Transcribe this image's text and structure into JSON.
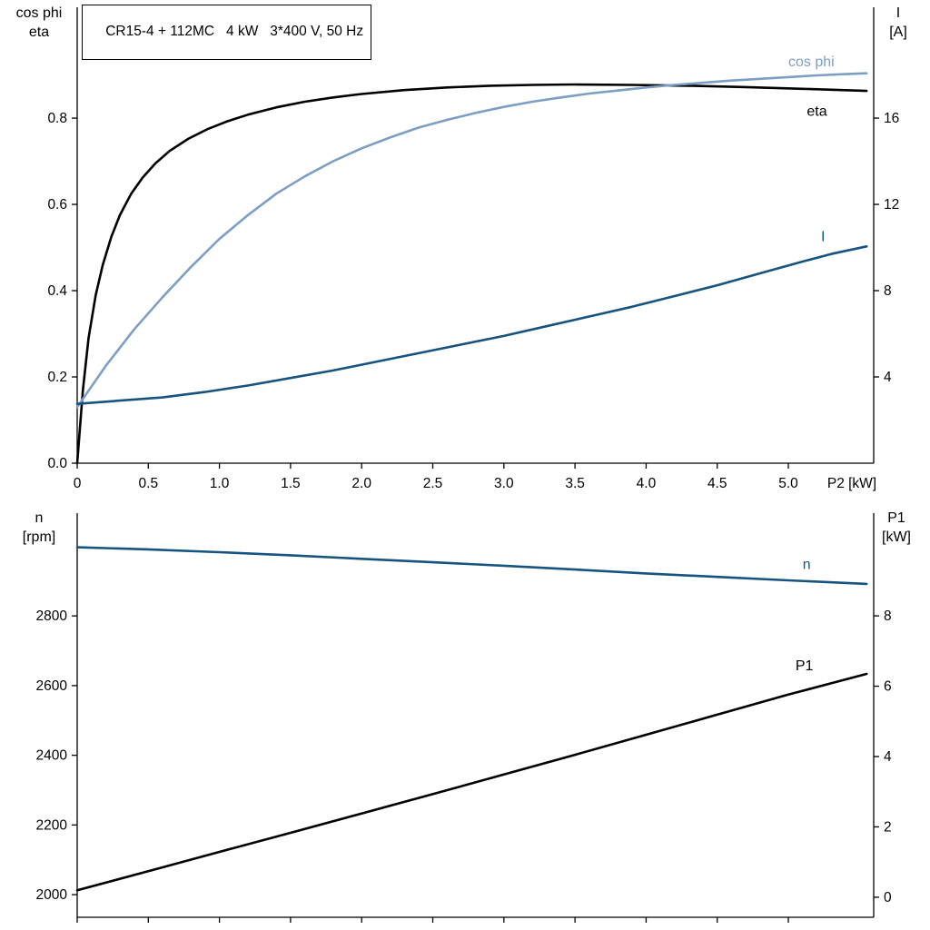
{
  "title_box": {
    "text": "CR15-4 + 112MC   4 kW   3*400 V, 50 Hz"
  },
  "chart_data": [
    {
      "type": "line",
      "title": "CR15-4 + 112MC   4 kW   3*400 V, 50 Hz",
      "xlabel": "P2 [kW]",
      "x_range": [
        0,
        5.6
      ],
      "grid": false,
      "x_ticks": [
        {
          "v": 0,
          "label": "0"
        },
        {
          "v": 0.5,
          "label": "0.5"
        },
        {
          "v": 1.0,
          "label": "1.0"
        },
        {
          "v": 1.5,
          "label": "1.5"
        },
        {
          "v": 2.0,
          "label": "2.0"
        },
        {
          "v": 2.5,
          "label": "2.5"
        },
        {
          "v": 3.0,
          "label": "3.0"
        },
        {
          "v": 3.5,
          "label": "3.5"
        },
        {
          "v": 4.0,
          "label": "4.0"
        },
        {
          "v": 4.5,
          "label": "4.5"
        },
        {
          "v": 5.0,
          "label": "5.0"
        }
      ],
      "left_axis": {
        "title_lines": [
          "cos phi",
          "eta"
        ],
        "range": [
          0,
          1.057
        ],
        "ticks": [
          {
            "v": 0.0,
            "label": "0.0"
          },
          {
            "v": 0.2,
            "label": "0.2"
          },
          {
            "v": 0.4,
            "label": "0.4"
          },
          {
            "v": 0.6,
            "label": "0.6"
          },
          {
            "v": 0.8,
            "label": "0.8"
          }
        ]
      },
      "right_axis": {
        "title_lines": [
          "I",
          "[A]"
        ],
        "range": [
          0,
          21.14
        ],
        "ticks": [
          {
            "v": 4,
            "label": "4"
          },
          {
            "v": 8,
            "label": "8"
          },
          {
            "v": 12,
            "label": "12"
          },
          {
            "v": 16,
            "label": "16"
          }
        ]
      },
      "series": [
        {
          "name": "eta",
          "axis": "left",
          "color": "#000000",
          "stroke_width": 2.6,
          "label": {
            "text": "eta",
            "x": 5.13,
            "y": 0.805
          },
          "points": [
            [
              0,
              0
            ],
            [
              0.04,
              0.17
            ],
            [
              0.08,
              0.29
            ],
            [
              0.13,
              0.39
            ],
            [
              0.18,
              0.46
            ],
            [
              0.24,
              0.525
            ],
            [
              0.3,
              0.575
            ],
            [
              0.38,
              0.625
            ],
            [
              0.46,
              0.662
            ],
            [
              0.55,
              0.695
            ],
            [
              0.65,
              0.724
            ],
            [
              0.78,
              0.752
            ],
            [
              0.92,
              0.775
            ],
            [
              1.05,
              0.792
            ],
            [
              1.2,
              0.808
            ],
            [
              1.4,
              0.825
            ],
            [
              1.6,
              0.838
            ],
            [
              1.8,
              0.848
            ],
            [
              2.0,
              0.856
            ],
            [
              2.3,
              0.865
            ],
            [
              2.6,
              0.871
            ],
            [
              2.9,
              0.875
            ],
            [
              3.2,
              0.877
            ],
            [
              3.5,
              0.878
            ],
            [
              3.9,
              0.877
            ],
            [
              4.3,
              0.875
            ],
            [
              4.7,
              0.872
            ],
            [
              5.1,
              0.868
            ],
            [
              5.55,
              0.863
            ]
          ]
        },
        {
          "name": "cos phi",
          "axis": "left",
          "color": "#7d9ec3",
          "stroke_width": 2.6,
          "label": {
            "text": "cos phi",
            "x": 5.0,
            "y": 0.92
          },
          "points": [
            [
              0,
              0.13
            ],
            [
              0.2,
              0.225
            ],
            [
              0.4,
              0.31
            ],
            [
              0.6,
              0.385
            ],
            [
              0.8,
              0.455
            ],
            [
              1.0,
              0.52
            ],
            [
              1.2,
              0.575
            ],
            [
              1.4,
              0.625
            ],
            [
              1.6,
              0.665
            ],
            [
              1.8,
              0.7
            ],
            [
              2.0,
              0.73
            ],
            [
              2.2,
              0.755
            ],
            [
              2.4,
              0.778
            ],
            [
              2.6,
              0.796
            ],
            [
              2.8,
              0.812
            ],
            [
              3.0,
              0.826
            ],
            [
              3.2,
              0.838
            ],
            [
              3.4,
              0.848
            ],
            [
              3.6,
              0.857
            ],
            [
              3.8,
              0.864
            ],
            [
              4.0,
              0.871
            ],
            [
              4.2,
              0.877
            ],
            [
              4.4,
              0.882
            ],
            [
              4.6,
              0.887
            ],
            [
              4.8,
              0.891
            ],
            [
              5.0,
              0.895
            ],
            [
              5.2,
              0.899
            ],
            [
              5.4,
              0.902
            ],
            [
              5.55,
              0.904
            ]
          ]
        },
        {
          "name": "I",
          "axis": "right",
          "color": "#17537f",
          "stroke_width": 2.6,
          "label": {
            "text": "I",
            "x": 5.23,
            "y": 10.3
          },
          "points": [
            [
              0,
              2.75
            ],
            [
              0.3,
              2.9
            ],
            [
              0.6,
              3.05
            ],
            [
              0.9,
              3.3
            ],
            [
              1.2,
              3.6
            ],
            [
              1.5,
              3.95
            ],
            [
              1.8,
              4.3
            ],
            [
              2.1,
              4.7
            ],
            [
              2.4,
              5.1
            ],
            [
              2.7,
              5.5
            ],
            [
              3.0,
              5.9
            ],
            [
              3.3,
              6.35
            ],
            [
              3.6,
              6.8
            ],
            [
              3.9,
              7.25
            ],
            [
              4.2,
              7.75
            ],
            [
              4.5,
              8.25
            ],
            [
              4.8,
              8.8
            ],
            [
              5.1,
              9.35
            ],
            [
              5.3,
              9.7
            ],
            [
              5.55,
              10.05
            ]
          ]
        }
      ]
    },
    {
      "type": "line",
      "title": "",
      "xlabel": "",
      "x_range": [
        0,
        5.6
      ],
      "grid": false,
      "x_ticks": [
        {
          "v": 0,
          "label": ""
        },
        {
          "v": 0.5,
          "label": ""
        },
        {
          "v": 1.0,
          "label": ""
        },
        {
          "v": 1.5,
          "label": ""
        },
        {
          "v": 2.0,
          "label": ""
        },
        {
          "v": 2.5,
          "label": ""
        },
        {
          "v": 3.0,
          "label": ""
        },
        {
          "v": 3.5,
          "label": ""
        },
        {
          "v": 4.0,
          "label": ""
        },
        {
          "v": 4.5,
          "label": ""
        },
        {
          "v": 5.0,
          "label": ""
        }
      ],
      "left_axis": {
        "title_lines": [
          "n",
          "[rpm]"
        ],
        "range": [
          1935,
          3095
        ],
        "ticks": [
          {
            "v": 2000,
            "label": "2000"
          },
          {
            "v": 2200,
            "label": "2200"
          },
          {
            "v": 2400,
            "label": "2400"
          },
          {
            "v": 2600,
            "label": "2600"
          },
          {
            "v": 2800,
            "label": "2800"
          }
        ]
      },
      "right_axis": {
        "title_lines": [
          "P1",
          "[kW]"
        ],
        "range": [
          -0.57,
          10.92
        ],
        "ticks": [
          {
            "v": 0,
            "label": "0"
          },
          {
            "v": 2,
            "label": "2"
          },
          {
            "v": 4,
            "label": "4"
          },
          {
            "v": 6,
            "label": "6"
          },
          {
            "v": 8,
            "label": "8"
          }
        ]
      },
      "series": [
        {
          "name": "n",
          "axis": "left",
          "color": "#17537f",
          "stroke_width": 2.6,
          "label": {
            "text": "n",
            "x": 5.1,
            "y": 2935
          },
          "points": [
            [
              0,
              2997
            ],
            [
              0.5,
              2991
            ],
            [
              1.0,
              2983
            ],
            [
              1.5,
              2974
            ],
            [
              2.0,
              2964
            ],
            [
              2.5,
              2954
            ],
            [
              3.0,
              2944
            ],
            [
              3.5,
              2933
            ],
            [
              4.0,
              2922
            ],
            [
              4.5,
              2912
            ],
            [
              5.0,
              2902
            ],
            [
              5.55,
              2892
            ]
          ]
        },
        {
          "name": "P1",
          "axis": "right",
          "color": "#000000",
          "stroke_width": 2.6,
          "label": {
            "text": "P1",
            "x": 5.05,
            "y": 6.45
          },
          "points": [
            [
              0,
              0.2
            ],
            [
              0.5,
              0.74
            ],
            [
              1.0,
              1.29
            ],
            [
              1.5,
              1.83
            ],
            [
              2.0,
              2.38
            ],
            [
              2.5,
              2.93
            ],
            [
              3.0,
              3.49
            ],
            [
              3.5,
              4.05
            ],
            [
              4.0,
              4.62
            ],
            [
              4.5,
              5.19
            ],
            [
              5.0,
              5.76
            ],
            [
              5.55,
              6.35
            ]
          ]
        }
      ]
    }
  ]
}
